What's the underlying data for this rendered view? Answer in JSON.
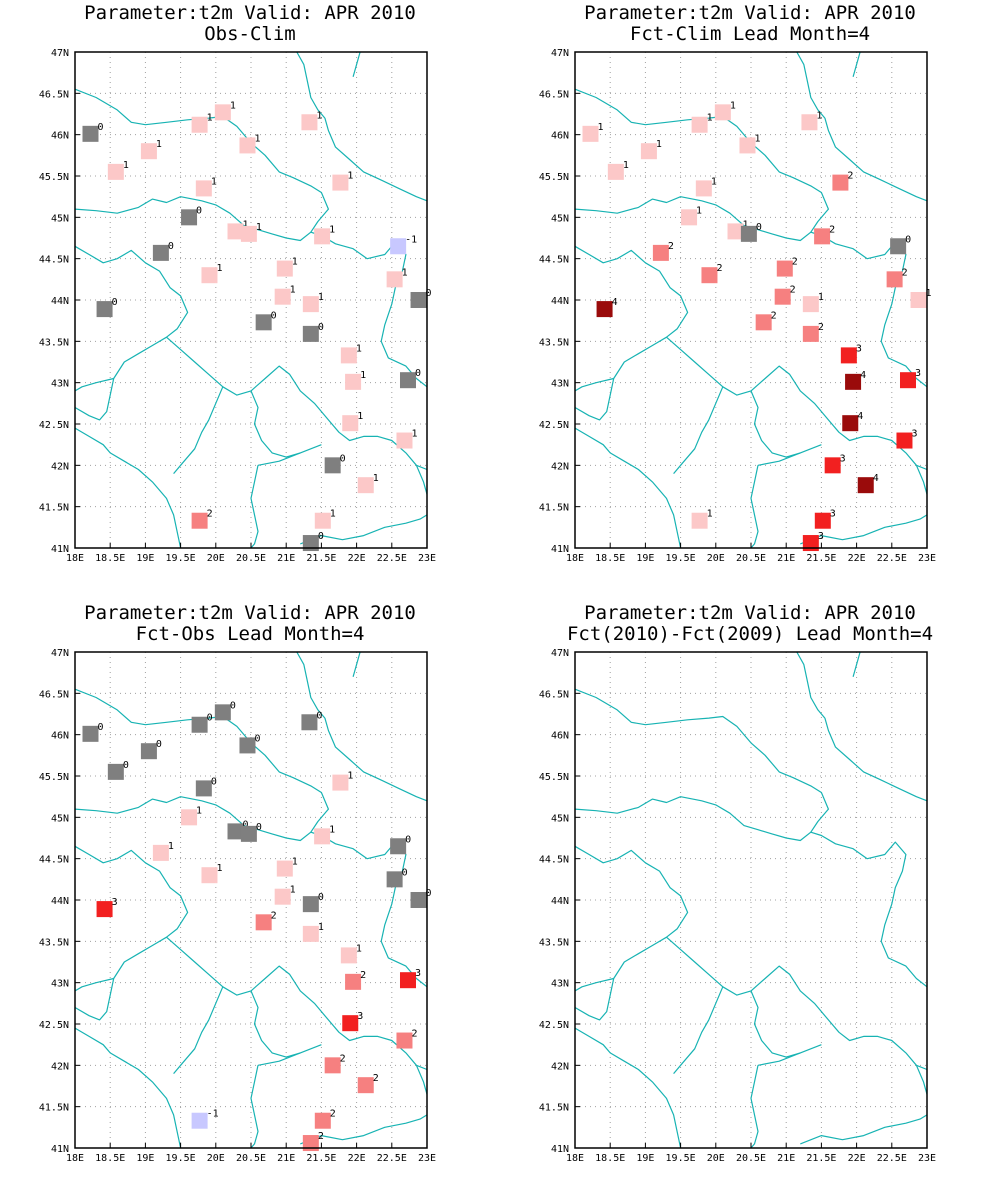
{
  "colors": {
    "coast": "#17b3b3",
    "grid": "#a0a0a0",
    "values": {
      "-1": "#c8c8ff",
      "0": "#7f7f7f",
      "1": "#fcc8c8",
      "2": "#f68080",
      "3": "#f22020",
      "4": "#9a0b0b"
    }
  },
  "axes": {
    "lon_labels": [
      "18E",
      "18.5E",
      "19E",
      "19.5E",
      "20E",
      "20.5E",
      "21E",
      "21.5E",
      "22E",
      "22.5E",
      "23E"
    ],
    "lat_labels": [
      "41N",
      "41.5N",
      "42N",
      "42.5N",
      "43N",
      "43.5N",
      "44N",
      "44.5N",
      "45N",
      "45.5N",
      "46N",
      "46.5N",
      "47N"
    ]
  },
  "chart_data": [
    {
      "type": "scatter",
      "title": "Parameter:t2m Valid: APR 2010",
      "subtitle": "Obs-Clim",
      "xlim": [
        18,
        23
      ],
      "ylim": [
        41,
        47
      ],
      "grid": true,
      "points": [
        {
          "lon": 18.22,
          "lat": 46.01,
          "v": 0
        },
        {
          "lon": 18.58,
          "lat": 45.55,
          "v": 1
        },
        {
          "lon": 18.42,
          "lat": 43.89,
          "v": 0
        },
        {
          "lon": 19.05,
          "lat": 45.8,
          "v": 1
        },
        {
          "lon": 19.22,
          "lat": 44.57,
          "v": 0
        },
        {
          "lon": 19.62,
          "lat": 45.0,
          "v": 0
        },
        {
          "lon": 19.77,
          "lat": 46.12,
          "v": 1
        },
        {
          "lon": 19.83,
          "lat": 45.35,
          "v": 1
        },
        {
          "lon": 19.91,
          "lat": 44.3,
          "v": 1
        },
        {
          "lon": 20.1,
          "lat": 46.27,
          "v": 1
        },
        {
          "lon": 20.28,
          "lat": 44.83,
          "v": 1
        },
        {
          "lon": 20.45,
          "lat": 45.87,
          "v": 1
        },
        {
          "lon": 20.47,
          "lat": 44.8,
          "v": 1
        },
        {
          "lon": 20.68,
          "lat": 43.73,
          "v": 0
        },
        {
          "lon": 20.95,
          "lat": 44.04,
          "v": 1
        },
        {
          "lon": 20.98,
          "lat": 44.38,
          "v": 1
        },
        {
          "lon": 21.33,
          "lat": 46.15,
          "v": 1
        },
        {
          "lon": 21.35,
          "lat": 43.95,
          "v": 1
        },
        {
          "lon": 21.35,
          "lat": 43.59,
          "v": 0
        },
        {
          "lon": 21.51,
          "lat": 44.77,
          "v": 1
        },
        {
          "lon": 21.66,
          "lat": 42.0,
          "v": 0
        },
        {
          "lon": 21.89,
          "lat": 43.33,
          "v": 1
        },
        {
          "lon": 21.91,
          "lat": 42.51,
          "v": 1
        },
        {
          "lon": 21.95,
          "lat": 43.01,
          "v": 1
        },
        {
          "lon": 21.77,
          "lat": 45.42,
          "v": 1
        },
        {
          "lon": 22.13,
          "lat": 41.76,
          "v": 1
        },
        {
          "lon": 22.54,
          "lat": 44.25,
          "v": 1
        },
        {
          "lon": 22.59,
          "lat": 44.65,
          "v": -1
        },
        {
          "lon": 22.68,
          "lat": 42.3,
          "v": 1
        },
        {
          "lon": 22.73,
          "lat": 43.03,
          "v": 0
        },
        {
          "lon": 22.88,
          "lat": 44.0,
          "v": 0
        },
        {
          "lon": 21.52,
          "lat": 41.33,
          "v": 1
        },
        {
          "lon": 19.77,
          "lat": 41.33,
          "v": 2
        },
        {
          "lon": 21.35,
          "lat": 41.06,
          "v": 0
        }
      ]
    },
    {
      "type": "scatter",
      "title": "Parameter:t2m Valid: APR 2010",
      "subtitle": "Fct-Clim Lead Month=4",
      "xlim": [
        18,
        23
      ],
      "ylim": [
        41,
        47
      ],
      "grid": true,
      "points": [
        {
          "lon": 18.22,
          "lat": 46.01,
          "v": 1
        },
        {
          "lon": 18.58,
          "lat": 45.55,
          "v": 1
        },
        {
          "lon": 18.42,
          "lat": 43.89,
          "v": 4
        },
        {
          "lon": 19.05,
          "lat": 45.8,
          "v": 1
        },
        {
          "lon": 19.22,
          "lat": 44.57,
          "v": 2
        },
        {
          "lon": 19.62,
          "lat": 45.0,
          "v": 1
        },
        {
          "lon": 19.77,
          "lat": 46.12,
          "v": 1
        },
        {
          "lon": 19.83,
          "lat": 45.35,
          "v": 1
        },
        {
          "lon": 19.91,
          "lat": 44.3,
          "v": 2
        },
        {
          "lon": 20.1,
          "lat": 46.27,
          "v": 1
        },
        {
          "lon": 20.28,
          "lat": 44.83,
          "v": 1
        },
        {
          "lon": 20.45,
          "lat": 45.87,
          "v": 1
        },
        {
          "lon": 20.47,
          "lat": 44.8,
          "v": 0
        },
        {
          "lon": 20.68,
          "lat": 43.73,
          "v": 2
        },
        {
          "lon": 20.95,
          "lat": 44.04,
          "v": 2
        },
        {
          "lon": 20.98,
          "lat": 44.38,
          "v": 2
        },
        {
          "lon": 21.33,
          "lat": 46.15,
          "v": 1
        },
        {
          "lon": 21.35,
          "lat": 43.95,
          "v": 1
        },
        {
          "lon": 21.35,
          "lat": 43.59,
          "v": 2
        },
        {
          "lon": 21.51,
          "lat": 44.77,
          "v": 2
        },
        {
          "lon": 21.66,
          "lat": 42.0,
          "v": 3
        },
        {
          "lon": 21.89,
          "lat": 43.33,
          "v": 3
        },
        {
          "lon": 21.91,
          "lat": 42.51,
          "v": 4
        },
        {
          "lon": 21.95,
          "lat": 43.01,
          "v": 4
        },
        {
          "lon": 21.77,
          "lat": 45.42,
          "v": 2
        },
        {
          "lon": 22.13,
          "lat": 41.76,
          "v": 4
        },
        {
          "lon": 22.54,
          "lat": 44.25,
          "v": 2
        },
        {
          "lon": 22.59,
          "lat": 44.65,
          "v": 0
        },
        {
          "lon": 22.68,
          "lat": 42.3,
          "v": 3
        },
        {
          "lon": 22.73,
          "lat": 43.03,
          "v": 3
        },
        {
          "lon": 22.88,
          "lat": 44.0,
          "v": 1
        },
        {
          "lon": 21.52,
          "lat": 41.33,
          "v": 3
        },
        {
          "lon": 19.77,
          "lat": 41.33,
          "v": 1
        },
        {
          "lon": 21.35,
          "lat": 41.06,
          "v": 3
        }
      ]
    },
    {
      "type": "scatter",
      "title": "Parameter:t2m Valid: APR 2010",
      "subtitle": "Fct-Obs Lead Month=4",
      "xlim": [
        18,
        23
      ],
      "ylim": [
        41,
        47
      ],
      "grid": true,
      "points": [
        {
          "lon": 18.22,
          "lat": 46.01,
          "v": 0
        },
        {
          "lon": 18.58,
          "lat": 45.55,
          "v": 0
        },
        {
          "lon": 18.42,
          "lat": 43.89,
          "v": 3
        },
        {
          "lon": 19.05,
          "lat": 45.8,
          "v": 0
        },
        {
          "lon": 19.22,
          "lat": 44.57,
          "v": 1
        },
        {
          "lon": 19.62,
          "lat": 45.0,
          "v": 1
        },
        {
          "lon": 19.77,
          "lat": 46.12,
          "v": 0
        },
        {
          "lon": 19.83,
          "lat": 45.35,
          "v": 0
        },
        {
          "lon": 19.91,
          "lat": 44.3,
          "v": 1
        },
        {
          "lon": 20.1,
          "lat": 46.27,
          "v": 0
        },
        {
          "lon": 20.28,
          "lat": 44.83,
          "v": 0
        },
        {
          "lon": 20.45,
          "lat": 45.87,
          "v": 0
        },
        {
          "lon": 20.47,
          "lat": 44.8,
          "v": 0
        },
        {
          "lon": 20.68,
          "lat": 43.73,
          "v": 2
        },
        {
          "lon": 20.95,
          "lat": 44.04,
          "v": 1
        },
        {
          "lon": 20.98,
          "lat": 44.38,
          "v": 1
        },
        {
          "lon": 21.33,
          "lat": 46.15,
          "v": 0
        },
        {
          "lon": 21.35,
          "lat": 43.95,
          "v": 0
        },
        {
          "lon": 21.35,
          "lat": 43.59,
          "v": 1
        },
        {
          "lon": 21.51,
          "lat": 44.77,
          "v": 1
        },
        {
          "lon": 21.66,
          "lat": 42.0,
          "v": 2
        },
        {
          "lon": 21.89,
          "lat": 43.33,
          "v": 1
        },
        {
          "lon": 21.91,
          "lat": 42.51,
          "v": 3
        },
        {
          "lon": 21.95,
          "lat": 43.01,
          "v": 2
        },
        {
          "lon": 21.77,
          "lat": 45.42,
          "v": 1
        },
        {
          "lon": 22.13,
          "lat": 41.76,
          "v": 2
        },
        {
          "lon": 22.54,
          "lat": 44.25,
          "v": 0
        },
        {
          "lon": 22.59,
          "lat": 44.65,
          "v": 0
        },
        {
          "lon": 22.68,
          "lat": 42.3,
          "v": 2
        },
        {
          "lon": 22.73,
          "lat": 43.03,
          "v": 3
        },
        {
          "lon": 22.88,
          "lat": 44.0,
          "v": 0
        },
        {
          "lon": 21.52,
          "lat": 41.33,
          "v": 2
        },
        {
          "lon": 19.77,
          "lat": 41.33,
          "v": -1
        },
        {
          "lon": 21.35,
          "lat": 41.06,
          "v": 2
        }
      ]
    },
    {
      "type": "scatter",
      "title": "Parameter:t2m Valid: APR 2010",
      "subtitle": "Fct(2010)-Fct(2009) Lead Month=4",
      "xlim": [
        18,
        23
      ],
      "ylim": [
        41,
        47
      ],
      "grid": true,
      "points": []
    }
  ]
}
